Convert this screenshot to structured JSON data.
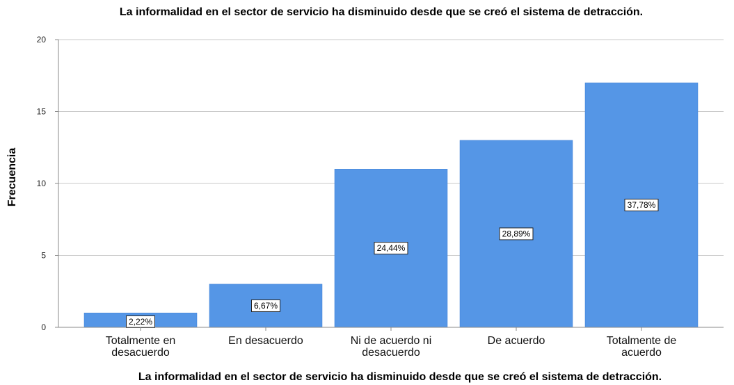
{
  "chart_data": {
    "type": "bar",
    "title": "La informalidad en el sector de servicio ha disminuido desde que se creó el sistema de detracción.",
    "xlabel": "La informalidad en el sector de servicio ha disminuido desde que se creó el sistema de detracción.",
    "ylabel": "Frecuencia",
    "categories": [
      [
        "Totalmente en",
        "desacuerdo"
      ],
      [
        "En desacuerdo"
      ],
      [
        "Ni de acuerdo ni",
        "desacuerdo"
      ],
      [
        "De acuerdo"
      ],
      [
        "Totalmente de",
        "acuerdo"
      ]
    ],
    "values": [
      1,
      3,
      11,
      13,
      17
    ],
    "data_labels": [
      "2,22%",
      "6,67%",
      "24,44%",
      "28,89%",
      "37,78%"
    ],
    "ylim": [
      0,
      20
    ],
    "yticks": [
      0,
      5,
      10,
      15,
      20
    ],
    "grid": true,
    "legend": "none",
    "colors": {
      "bar": "#5596e6",
      "bar_edge": "#3d7fd4",
      "grid": "#c8c8c8",
      "axis": "#888888"
    }
  }
}
